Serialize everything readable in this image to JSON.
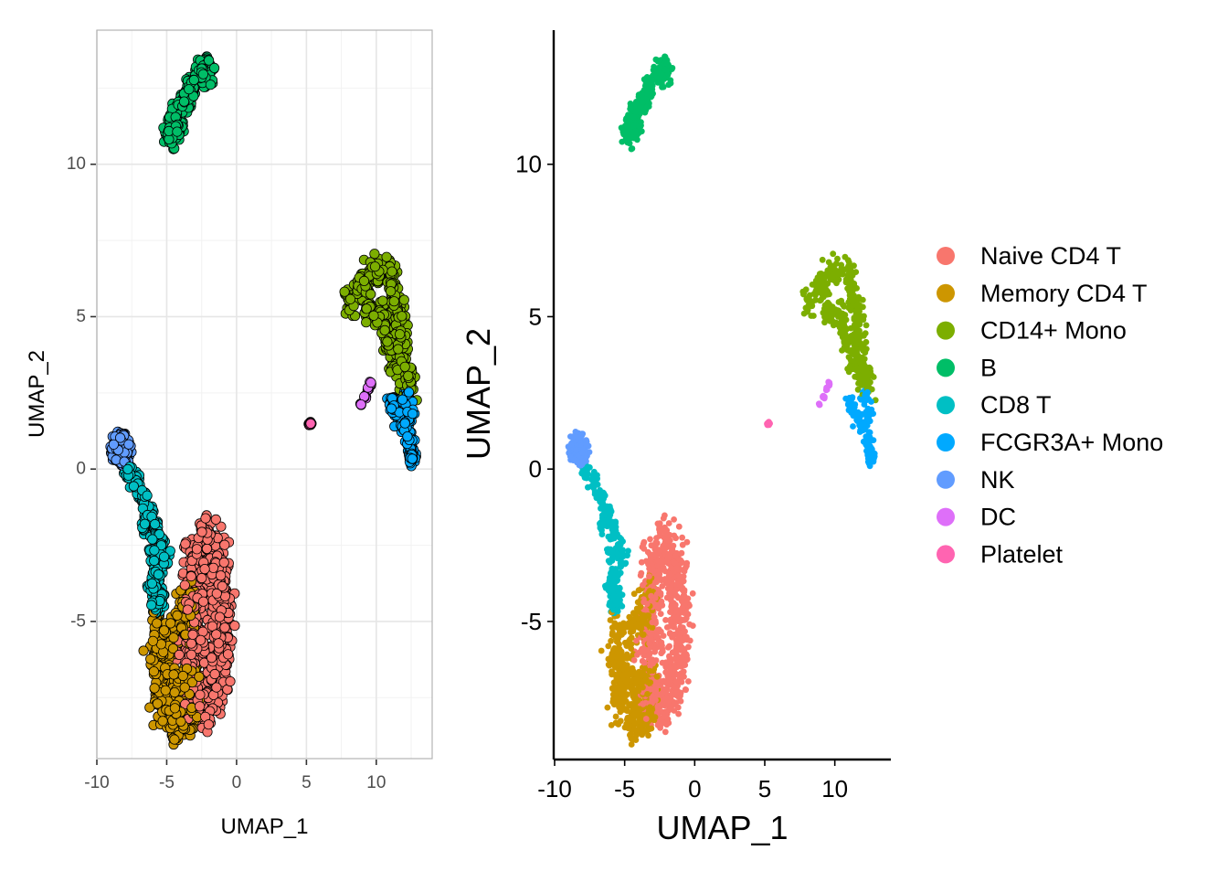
{
  "chart_data": [
    {
      "type": "scatter",
      "style": "theme_light_outlined_points",
      "xlabel": "UMAP_1",
      "ylabel": "UMAP_2",
      "xlim": [
        -10,
        14
      ],
      "ylim": [
        -9.5,
        14.4
      ],
      "x_ticks": [
        -10,
        -5,
        0,
        5,
        10
      ],
      "y_ticks": [
        -5,
        0,
        5,
        10
      ],
      "grid": true,
      "legend": "none"
    },
    {
      "type": "scatter",
      "style": "theme_classic",
      "xlabel": "UMAP_1",
      "ylabel": "UMAP_2",
      "xlim": [
        -10,
        14
      ],
      "ylim": [
        -9.5,
        14.4
      ],
      "x_ticks": [
        -10,
        -5,
        0,
        5,
        10
      ],
      "y_ticks": [
        -5,
        0,
        5,
        10
      ],
      "grid": false,
      "legend": "right"
    }
  ],
  "clusters": [
    {
      "name": "Naive CD4 T",
      "color": "#F8766D",
      "n": 700,
      "spread": 0.75,
      "path": [
        [
          -2.2,
          -2.4
        ],
        [
          -1.4,
          -3.2
        ],
        [
          -1.2,
          -4.4
        ],
        [
          -1.1,
          -5.6
        ],
        [
          -1.5,
          -6.8
        ],
        [
          -2.2,
          -7.6
        ],
        [
          -3.1,
          -7.2
        ],
        [
          -3.2,
          -5.8
        ],
        [
          -3.0,
          -4.5
        ],
        [
          -2.9,
          -3.3
        ]
      ]
    },
    {
      "name": "Memory CD4 T",
      "color": "#CD9600",
      "n": 520,
      "spread": 0.55,
      "path": [
        [
          -3.4,
          -4.2
        ],
        [
          -3.6,
          -5.0
        ],
        [
          -4.4,
          -5.2
        ],
        [
          -5.4,
          -5.4
        ],
        [
          -5.6,
          -6.2
        ],
        [
          -5.0,
          -6.8
        ],
        [
          -4.2,
          -7.0
        ],
        [
          -3.4,
          -7.0
        ],
        [
          -5.4,
          -7.6
        ],
        [
          -4.4,
          -8.0
        ],
        [
          -4.2,
          -8.4
        ],
        [
          -3.4,
          -8.0
        ]
      ]
    },
    {
      "name": "CD14+ Mono",
      "color": "#7CAE00",
      "n": 460,
      "spread": 0.42,
      "path": [
        [
          8.2,
          5.5
        ],
        [
          9.0,
          6.0
        ],
        [
          10.0,
          6.4
        ],
        [
          11.0,
          6.3
        ],
        [
          11.4,
          5.6
        ],
        [
          9.6,
          5.2
        ],
        [
          10.4,
          5.0
        ],
        [
          11.6,
          4.8
        ],
        [
          10.8,
          4.3
        ],
        [
          11.8,
          4.0
        ],
        [
          11.4,
          3.5
        ],
        [
          12.0,
          3.2
        ],
        [
          12.2,
          2.8
        ]
      ]
    },
    {
      "name": "B",
      "color": "#00BE67",
      "n": 380,
      "spread": 0.32,
      "path": [
        [
          -4.8,
          11.0
        ],
        [
          -4.4,
          11.6
        ],
        [
          -3.8,
          12.0
        ],
        [
          -3.2,
          12.6
        ],
        [
          -2.5,
          13.0
        ],
        [
          -2.1,
          13.1
        ],
        [
          -4.2,
          11.2
        ],
        [
          -3.4,
          12.2
        ]
      ]
    },
    {
      "name": "CD8 T",
      "color": "#00BFC4",
      "n": 300,
      "spread": 0.26,
      "path": [
        [
          -7.8,
          -0.1
        ],
        [
          -7.2,
          -0.5
        ],
        [
          -6.6,
          -1.0
        ],
        [
          -6.2,
          -1.5
        ],
        [
          -6.6,
          -1.8
        ],
        [
          -5.8,
          -2.0
        ],
        [
          -5.4,
          -2.5
        ],
        [
          -6.0,
          -2.8
        ],
        [
          -5.2,
          -3.0
        ],
        [
          -5.8,
          -3.5
        ],
        [
          -6.0,
          -3.8
        ],
        [
          -5.4,
          -4.2
        ],
        [
          -5.8,
          -4.6
        ]
      ]
    },
    {
      "name": "FCGR3A+ Mono",
      "color": "#00A9FF",
      "n": 200,
      "spread": 0.22,
      "path": [
        [
          11.2,
          2.1
        ],
        [
          11.6,
          1.7
        ],
        [
          12.0,
          1.4
        ],
        [
          12.4,
          1.0
        ],
        [
          12.5,
          0.6
        ],
        [
          12.1,
          2.4
        ],
        [
          12.4,
          1.8
        ],
        [
          12.6,
          0.4
        ]
      ]
    },
    {
      "name": "NK",
      "color": "#619CFF",
      "n": 150,
      "spread": 0.25,
      "path": [
        [
          -8.6,
          0.8
        ],
        [
          -8.2,
          1.0
        ],
        [
          -7.8,
          0.7
        ],
        [
          -8.4,
          0.4
        ],
        [
          -8.0,
          0.3
        ],
        [
          -8.8,
          0.6
        ]
      ]
    },
    {
      "name": "DC",
      "color": "#DE6FF9",
      "n": 26,
      "spread": 0.05,
      "path": [
        [
          8.9,
          2.1
        ],
        [
          9.2,
          2.4
        ],
        [
          9.4,
          2.6
        ],
        [
          9.6,
          2.8
        ]
      ]
    },
    {
      "name": "Platelet",
      "color": "#FF64B1",
      "n": 12,
      "spread": 0.05,
      "path": [
        [
          5.2,
          1.45
        ],
        [
          5.3,
          1.5
        ]
      ]
    }
  ]
}
